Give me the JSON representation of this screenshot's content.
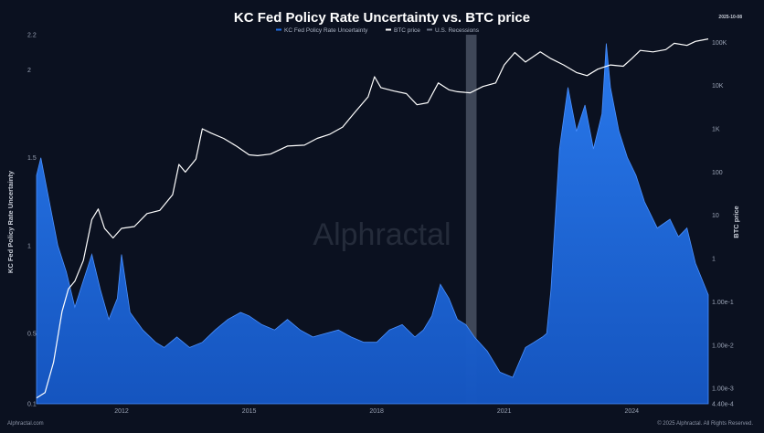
{
  "chart_data": {
    "type": "area",
    "title": "KC Fed Policy Rate Uncertainty vs. BTC price",
    "date_tag": "2025-10-08",
    "legend": {
      "entries": [
        {
          "name": "KC Fed Policy Rate Uncertainty",
          "color": "#1f6fe8"
        },
        {
          "name": "BTC price",
          "color": "#ffffff"
        },
        {
          "name": "U.S. Recessions",
          "color": "#6c7486"
        }
      ]
    },
    "y_left": {
      "label": "KC Fed Policy Rate Uncertainty",
      "ticks": [
        "2.2",
        "2",
        "1.5",
        "1",
        "0.5",
        "0.1"
      ],
      "tick_values": [
        2.2,
        2,
        1.5,
        1,
        0.5,
        0.1
      ],
      "range": [
        0.1,
        2.2
      ]
    },
    "y_right": {
      "label": "BTC price",
      "scale": "log",
      "ticks": [
        "100K",
        "10K",
        "1K",
        "100",
        "10",
        "1",
        "1.00e-1",
        "1.00e-2",
        "1.00e-3",
        "4.40e-4"
      ],
      "tick_values": [
        100000,
        10000,
        1000,
        100,
        10,
        1,
        0.1,
        0.01,
        0.001,
        0.00044
      ],
      "range": [
        0.00044,
        150000
      ]
    },
    "x": {
      "ticks": [
        "2012",
        "2015",
        "2018",
        "2021",
        "2024"
      ],
      "tick_values": [
        2012,
        2015,
        2018,
        2021,
        2024
      ],
      "range": [
        2010.0,
        2025.8
      ]
    },
    "recession": {
      "name": "U.S. Recessions",
      "start": 2020.1,
      "end": 2020.35
    },
    "series": [
      {
        "name": "KC Fed Policy Rate Uncertainty",
        "type": "area",
        "x": [
          2010.0,
          2010.1,
          2010.3,
          2010.5,
          2010.7,
          2010.9,
          2011.1,
          2011.3,
          2011.5,
          2011.7,
          2011.9,
          2012.0,
          2012.2,
          2012.5,
          2012.8,
          2013.0,
          2013.3,
          2013.6,
          2013.9,
          2014.2,
          2014.5,
          2014.8,
          2015.0,
          2015.3,
          2015.6,
          2015.9,
          2016.2,
          2016.5,
          2016.8,
          2017.1,
          2017.4,
          2017.7,
          2018.0,
          2018.3,
          2018.6,
          2018.9,
          2019.1,
          2019.3,
          2019.5,
          2019.7,
          2019.9,
          2020.1,
          2020.3,
          2020.6,
          2020.9,
          2021.2,
          2021.5,
          2021.7,
          2021.9,
          2022.0,
          2022.1,
          2022.3,
          2022.5,
          2022.7,
          2022.9,
          2023.1,
          2023.3,
          2023.4,
          2023.5,
          2023.7,
          2023.9,
          2024.1,
          2024.3,
          2024.6,
          2024.9,
          2025.1,
          2025.3,
          2025.5,
          2025.8
        ],
        "values": [
          1.4,
          1.5,
          1.25,
          1.0,
          0.85,
          0.65,
          0.8,
          0.95,
          0.75,
          0.58,
          0.7,
          0.95,
          0.62,
          0.52,
          0.45,
          0.42,
          0.48,
          0.42,
          0.45,
          0.52,
          0.58,
          0.62,
          0.6,
          0.55,
          0.52,
          0.58,
          0.52,
          0.48,
          0.5,
          0.52,
          0.48,
          0.45,
          0.45,
          0.52,
          0.55,
          0.48,
          0.52,
          0.6,
          0.78,
          0.7,
          0.58,
          0.55,
          0.48,
          0.4,
          0.28,
          0.25,
          0.42,
          0.45,
          0.48,
          0.5,
          0.75,
          1.55,
          1.9,
          1.65,
          1.8,
          1.55,
          1.75,
          2.15,
          1.9,
          1.65,
          1.5,
          1.4,
          1.25,
          1.1,
          1.15,
          1.05,
          1.1,
          0.9,
          0.72
        ]
      },
      {
        "name": "BTC price",
        "type": "line",
        "axis": "right",
        "x": [
          2010.0,
          2010.2,
          2010.4,
          2010.6,
          2010.75,
          2010.9,
          2011.1,
          2011.3,
          2011.45,
          2011.6,
          2011.8,
          2012.0,
          2012.3,
          2012.6,
          2012.9,
          2013.2,
          2013.35,
          2013.5,
          2013.75,
          2013.9,
          2014.1,
          2014.4,
          2014.7,
          2015.0,
          2015.2,
          2015.5,
          2015.9,
          2016.3,
          2016.6,
          2016.9,
          2017.2,
          2017.5,
          2017.8,
          2017.95,
          2018.1,
          2018.4,
          2018.7,
          2018.95,
          2019.2,
          2019.45,
          2019.7,
          2019.9,
          2020.2,
          2020.5,
          2020.8,
          2021.0,
          2021.25,
          2021.5,
          2021.85,
          2022.1,
          2022.4,
          2022.7,
          2022.95,
          2023.2,
          2023.5,
          2023.8,
          2024.0,
          2024.2,
          2024.5,
          2024.8,
          2025.0,
          2025.3,
          2025.5,
          2025.8
        ],
        "values": [
          0.0006,
          0.0008,
          0.004,
          0.06,
          0.2,
          0.3,
          0.9,
          8,
          14,
          5,
          3,
          5,
          5.5,
          11,
          13,
          30,
          150,
          100,
          200,
          1000,
          800,
          600,
          400,
          250,
          240,
          260,
          400,
          420,
          600,
          750,
          1100,
          2500,
          5500,
          16000,
          9000,
          7500,
          6500,
          3600,
          4000,
          11500,
          8000,
          7200,
          6800,
          9500,
          11500,
          30000,
          58000,
          35000,
          60000,
          42000,
          30000,
          20000,
          17000,
          24000,
          30000,
          28000,
          42000,
          65000,
          60000,
          68000,
          95000,
          85000,
          105000,
          120000
        ]
      }
    ]
  },
  "watermark": "Alphractal",
  "footer": {
    "left": "Alphractal.com",
    "right": "© 2025 Alphractal. All Rights Reserved."
  }
}
